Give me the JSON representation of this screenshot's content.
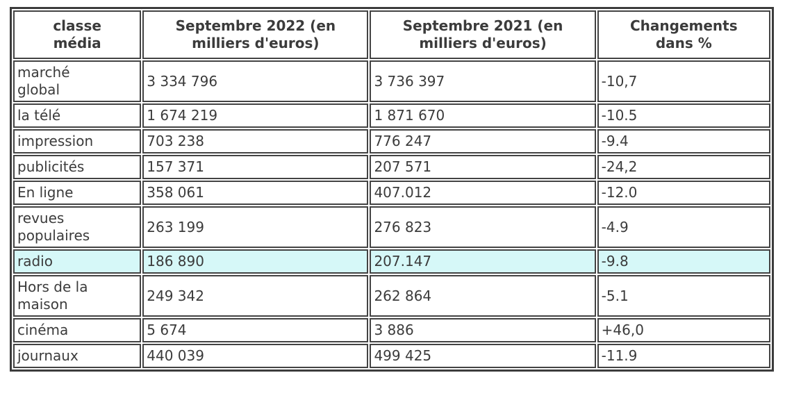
{
  "chart_data": {
    "type": "table",
    "title": "",
    "columns": [
      "classe média",
      "Septembre 2022 (en milliers d'euros)",
      "Septembre 2021 (en milliers d'euros)",
      "Changements dans %"
    ],
    "rows": [
      [
        "marché global",
        "3 334 796",
        "3 736 397",
        "-10,7"
      ],
      [
        "la télé",
        "1 674 219",
        "1 871 670",
        "-10.5"
      ],
      [
        "impression",
        "703 238",
        "776 247",
        "-9.4"
      ],
      [
        "publicités",
        "157 371",
        "207 571",
        "-24,2"
      ],
      [
        "En ligne",
        "358 061",
        "407.012",
        "-12.0"
      ],
      [
        "revues populaires",
        "263 199",
        "276 823",
        "-4.9"
      ],
      [
        "radio",
        "186 890",
        "207.147",
        "-9.8"
      ],
      [
        "Hors de la maison",
        "249 342",
        "262 864",
        "-5.1"
      ],
      [
        "cinéma",
        "5 674",
        "3 886",
        "+46,0"
      ],
      [
        "journaux",
        "440 039",
        "499 425",
        "-11.9"
      ]
    ],
    "highlighted_row": "radio"
  },
  "table": {
    "headers": [
      "classe\nmédia",
      "Septembre 2022 (en\nmilliers d'euros)",
      "Septembre 2021 (en\nmilliers d'euros)",
      "Changements\ndans %"
    ],
    "rows": [
      {
        "media": "marché\nglobal",
        "sep2022": "3 334 796",
        "sep2021": "3 736 397",
        "change": "-10,7",
        "highlighted": false
      },
      {
        "media": "la télé",
        "sep2022": "1 674 219",
        "sep2021": "1 871 670",
        "change": "-10.5",
        "highlighted": false
      },
      {
        "media": "impression",
        "sep2022": "703 238",
        "sep2021": "776 247",
        "change": "-9.4",
        "highlighted": false
      },
      {
        "media": "publicités",
        "sep2022": "157 371",
        "sep2021": "207 571",
        "change": "-24,2",
        "highlighted": false
      },
      {
        "media": "En ligne",
        "sep2022": "358 061",
        "sep2021": "407.012",
        "change": "-12.0",
        "highlighted": false
      },
      {
        "media": "revues\npopulaires",
        "sep2022": "263 199",
        "sep2021": "276 823",
        "change": "-4.9",
        "highlighted": false
      },
      {
        "media": "radio",
        "sep2022": "186 890",
        "sep2021": "207.147",
        "change": "-9.8",
        "highlighted": true
      },
      {
        "media": "Hors de la\nmaison",
        "sep2022": "249 342",
        "sep2021": "262 864",
        "change": "-5.1",
        "highlighted": false
      },
      {
        "media": "cinéma",
        "sep2022": "5 674",
        "sep2021": "3 886",
        "change": "+46,0",
        "highlighted": false
      },
      {
        "media": "journaux",
        "sep2022": "440 039",
        "sep2021": "499 425",
        "change": "-11.9",
        "highlighted": false
      }
    ]
  },
  "colors": {
    "highlight": "#d6f8f8",
    "border": "#434343",
    "outer_border": "#3c3c3c",
    "text": "#3b3b3b",
    "background": "#ffffff"
  }
}
